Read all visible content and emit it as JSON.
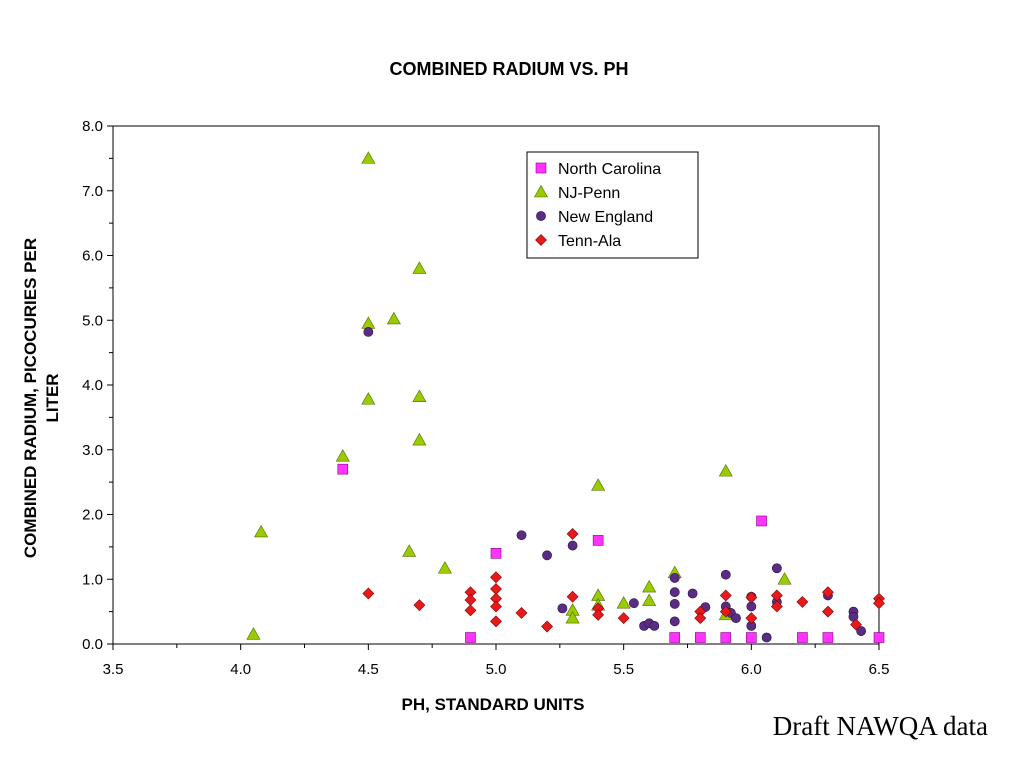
{
  "footnote": "Draft NAWQA data",
  "chart_data": {
    "type": "scatter",
    "title": "COMBINED RADIUM VS. PH",
    "xlabel": "PH, STANDARD UNITS",
    "ylabel_lines": [
      "COMBINED RADIUM, PICOCURIES PER",
      "LITER"
    ],
    "xlim": [
      3.5,
      6.5
    ],
    "ylim": [
      0.0,
      8.0
    ],
    "xticks": [
      "3.5",
      "4.0",
      "4.5",
      "5.0",
      "5.5",
      "6.0",
      "6.5"
    ],
    "yticks": [
      "0.0",
      "1.0",
      "2.0",
      "3.0",
      "4.0",
      "5.0",
      "6.0",
      "7.0",
      "8.0"
    ],
    "grid": false,
    "legend_position": "top-right",
    "series": [
      {
        "name": "North Carolina",
        "marker": "square",
        "color": "#FF33FF",
        "points": [
          [
            4.4,
            2.7
          ],
          [
            4.9,
            0.1
          ],
          [
            5.0,
            1.4
          ],
          [
            5.4,
            1.6
          ],
          [
            5.7,
            0.1
          ],
          [
            5.8,
            0.1
          ],
          [
            5.9,
            0.1
          ],
          [
            6.0,
            0.1
          ],
          [
            6.04,
            1.9
          ],
          [
            6.2,
            0.1
          ],
          [
            6.3,
            0.1
          ],
          [
            6.5,
            0.1
          ]
        ]
      },
      {
        "name": "NJ-Penn",
        "marker": "triangle",
        "color": "#99CC00",
        "points": [
          [
            4.05,
            0.15
          ],
          [
            4.08,
            1.73
          ],
          [
            4.4,
            2.9
          ],
          [
            4.5,
            7.5
          ],
          [
            4.5,
            4.95
          ],
          [
            4.5,
            3.78
          ],
          [
            4.6,
            5.02
          ],
          [
            4.66,
            1.43
          ],
          [
            4.7,
            5.8
          ],
          [
            4.7,
            3.82
          ],
          [
            4.7,
            3.15
          ],
          [
            4.8,
            1.17
          ],
          [
            5.3,
            0.52
          ],
          [
            5.3,
            0.4
          ],
          [
            5.4,
            2.45
          ],
          [
            5.4,
            0.75
          ],
          [
            5.4,
            0.6
          ],
          [
            5.5,
            0.63
          ],
          [
            5.6,
            0.88
          ],
          [
            5.6,
            0.67
          ],
          [
            5.7,
            1.1
          ],
          [
            5.9,
            2.67
          ],
          [
            5.9,
            0.45
          ],
          [
            6.13,
            1.0
          ]
        ]
      },
      {
        "name": "New England",
        "marker": "circle",
        "color": "#5A2D82",
        "points": [
          [
            4.5,
            4.82
          ],
          [
            5.1,
            1.68
          ],
          [
            5.2,
            1.37
          ],
          [
            5.26,
            0.55
          ],
          [
            5.3,
            1.52
          ],
          [
            5.54,
            0.63
          ],
          [
            5.58,
            0.28
          ],
          [
            5.6,
            0.32
          ],
          [
            5.62,
            0.28
          ],
          [
            5.7,
            1.02
          ],
          [
            5.7,
            0.8
          ],
          [
            5.7,
            0.62
          ],
          [
            5.7,
            0.35
          ],
          [
            5.77,
            0.78
          ],
          [
            5.82,
            0.57
          ],
          [
            5.9,
            1.07
          ],
          [
            5.9,
            0.58
          ],
          [
            5.92,
            0.48
          ],
          [
            5.94,
            0.4
          ],
          [
            6.0,
            0.73
          ],
          [
            6.0,
            0.58
          ],
          [
            6.0,
            0.28
          ],
          [
            6.06,
            0.1
          ],
          [
            6.1,
            1.17
          ],
          [
            6.1,
            0.65
          ],
          [
            6.3,
            0.75
          ],
          [
            6.4,
            0.5
          ],
          [
            6.4,
            0.42
          ],
          [
            6.43,
            0.2
          ]
        ]
      },
      {
        "name": "Tenn-Ala",
        "marker": "diamond",
        "color": "#E8191A",
        "points": [
          [
            4.5,
            0.78
          ],
          [
            4.7,
            0.6
          ],
          [
            4.9,
            0.8
          ],
          [
            4.9,
            0.68
          ],
          [
            4.9,
            0.52
          ],
          [
            5.0,
            1.03
          ],
          [
            5.0,
            0.85
          ],
          [
            5.0,
            0.7
          ],
          [
            5.0,
            0.58
          ],
          [
            5.0,
            0.35
          ],
          [
            5.1,
            0.48
          ],
          [
            5.2,
            0.27
          ],
          [
            5.3,
            1.7
          ],
          [
            5.3,
            0.73
          ],
          [
            5.4,
            0.55
          ],
          [
            5.4,
            0.45
          ],
          [
            5.5,
            0.4
          ],
          [
            5.8,
            0.5
          ],
          [
            5.8,
            0.4
          ],
          [
            5.9,
            0.75
          ],
          [
            5.9,
            0.5
          ],
          [
            6.0,
            0.72
          ],
          [
            6.0,
            0.4
          ],
          [
            6.1,
            0.75
          ],
          [
            6.1,
            0.58
          ],
          [
            6.2,
            0.65
          ],
          [
            6.3,
            0.8
          ],
          [
            6.3,
            0.5
          ],
          [
            6.41,
            0.3
          ],
          [
            6.5,
            0.7
          ],
          [
            6.5,
            0.63
          ]
        ]
      }
    ]
  }
}
